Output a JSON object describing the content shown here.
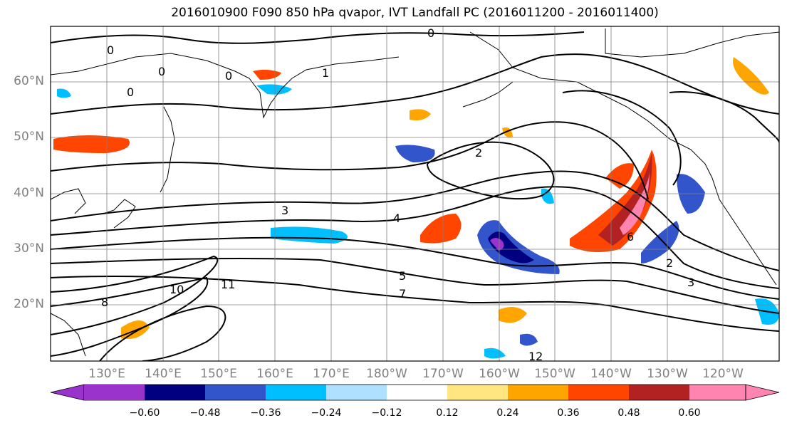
{
  "title": "2016010900 F090 850 hPa qvapor, IVT Landfall PC (2016011200 - 2016011400)",
  "lat_labels": [
    "60°N",
    "50°N",
    "40°N",
    "30°N",
    "20°N"
  ],
  "lon_labels": [
    "130°E",
    "140°E",
    "150°E",
    "160°E",
    "170°E",
    "180°W",
    "170°W",
    "160°W",
    "150°W",
    "140°W",
    "130°W",
    "120°W"
  ],
  "colorbar": {
    "colors": [
      "#9933cc",
      "#000080",
      "#3355cc",
      "#00bfff",
      "#b0e0ff",
      "#ffffff",
      "#ffe680",
      "#ffa500",
      "#ff4500",
      "#b22222",
      "#ff85b0"
    ],
    "tick_labels": [
      "−0.60",
      "−0.48",
      "−0.36",
      "−0.24",
      "−0.12",
      "0.12",
      "0.24",
      "0.36",
      "0.48",
      "0.60"
    ]
  },
  "contour_labels": [
    "0",
    "0",
    "0",
    "0",
    "1",
    "0",
    "2",
    "3",
    "4",
    "5",
    "6",
    "7",
    "8",
    "10",
    "11",
    "12",
    "2",
    "3"
  ],
  "colors": {
    "land_outline": "#000000",
    "grid": "#808080"
  }
}
